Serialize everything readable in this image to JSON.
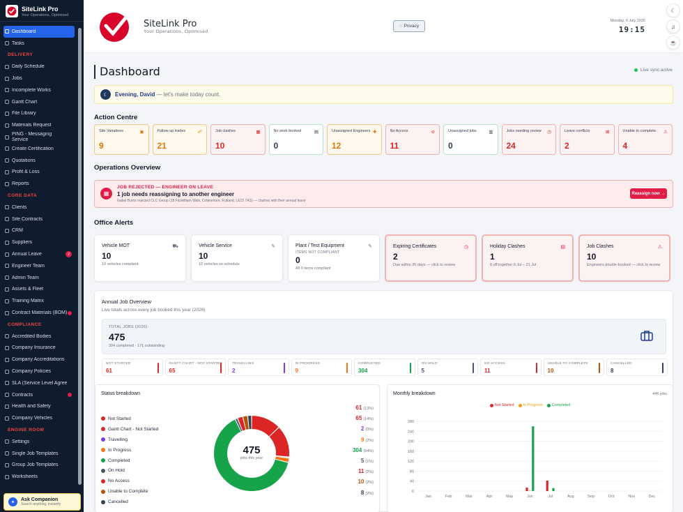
{
  "brand": {
    "title": "SiteLink Pro",
    "subtitle": "Your Operations, Optimised"
  },
  "nav": {
    "top": [
      {
        "label": "Dashboard",
        "active": true
      },
      {
        "label": "Tasks"
      }
    ],
    "sections": [
      {
        "title": "DELIVERY",
        "items": [
          {
            "label": "Daily Schedule"
          },
          {
            "label": "Jobs"
          },
          {
            "label": "Incomplete Works"
          },
          {
            "label": "Gantt Chart"
          },
          {
            "label": "File Library"
          },
          {
            "label": "Materials Request"
          },
          {
            "label": "PING - Messaging Service"
          },
          {
            "label": "Create Certification"
          },
          {
            "label": "Quotations"
          },
          {
            "label": "Profit & Loss"
          },
          {
            "label": "Reports"
          }
        ]
      },
      {
        "title": "CORE DATA",
        "items": [
          {
            "label": "Clients"
          },
          {
            "label": "Site Contracts"
          },
          {
            "label": "CRM"
          },
          {
            "label": "Suppliers"
          },
          {
            "label": "Annual Leave",
            "badge": "2"
          },
          {
            "label": "Engineer Team"
          },
          {
            "label": "Admin Team"
          },
          {
            "label": "Assets & Fleet"
          },
          {
            "label": "Training Matrix"
          },
          {
            "label": "Contract Materials (BOM)",
            "dot": true
          }
        ]
      },
      {
        "title": "COMPLIANCE",
        "items": [
          {
            "label": "Accredited Bodies"
          },
          {
            "label": "Company Insurance"
          },
          {
            "label": "Company Accreditations"
          },
          {
            "label": "Company Policies"
          },
          {
            "label": "SLA (Service Level Agree..."
          },
          {
            "label": "Contracts",
            "dot": true
          },
          {
            "label": "Health and Safety"
          },
          {
            "label": "Company Vehicles"
          }
        ]
      },
      {
        "title": "ENGINE ROOM",
        "items": [
          {
            "label": "Settings"
          },
          {
            "label": "Single Job Templates"
          },
          {
            "label": "Group Job Templates"
          },
          {
            "label": "Worksheets"
          }
        ]
      }
    ]
  },
  "companion": {
    "title": "Ask Companion",
    "subtitle": "Search anything, instantly"
  },
  "header": {
    "title": "SiteLink Pro",
    "subtitle": "Your Operations, Optimised",
    "privacy_label": "Privacy",
    "date": "Monday, 6 July 2026",
    "time": "19:15"
  },
  "page": {
    "title": "Dashboard",
    "sync": "Live sync active"
  },
  "greeting": {
    "name": "Evening, David",
    "text": " — let's make today count."
  },
  "action_centre": {
    "title": "Action Centre",
    "cards": [
      {
        "label": "Site Variations",
        "value": "9",
        "tone": "amber",
        "color": "#d97706",
        "icon": "▣"
      },
      {
        "label": "Follow-up trades",
        "value": "21",
        "tone": "amber",
        "color": "#d97706",
        "icon": "☍"
      },
      {
        "label": "Job clashes",
        "value": "10",
        "tone": "red",
        "color": "#dc2626",
        "icon": "▦"
      },
      {
        "label": "No work booked",
        "value": "0",
        "tone": "green",
        "color": "#334155",
        "icon": "▤"
      },
      {
        "label": "Unassigned Engineers",
        "value": "12",
        "tone": "amber",
        "color": "#d97706",
        "icon": "✚"
      },
      {
        "label": "No Access",
        "value": "11",
        "tone": "red",
        "color": "#dc2626",
        "icon": "⊘"
      },
      {
        "label": "Unassigned jobs",
        "value": "0",
        "tone": "green",
        "color": "#334155",
        "icon": "▥"
      },
      {
        "label": "Jobs needing review",
        "value": "24",
        "tone": "red",
        "color": "#dc2626",
        "icon": "◷"
      },
      {
        "label": "Leave conflicts",
        "value": "2",
        "tone": "red",
        "color": "#dc2626",
        "icon": "⊠"
      },
      {
        "label": "Unable to complete",
        "value": "4",
        "tone": "red",
        "color": "#dc2626",
        "icon": "⚠"
      }
    ]
  },
  "operations": {
    "title": "Operations Overview",
    "tag": "JOB REJECTED — ENGINEER ON LEAVE",
    "headline": "1 job needs reassigning to another engineer",
    "detail": "Isabel Burns rejected CLC Group (18 Fitzwilliam Walk, Cottesmore, Rutland, LE15 7AS) — clashes with their annual leave",
    "button": "Reassign now →"
  },
  "office_alerts": {
    "title": "Office Alerts",
    "cards": [
      {
        "title": "Vehicle MOT",
        "value": "10",
        "sub": "10 vehicles compliant",
        "alert": false,
        "icon": "⛟"
      },
      {
        "title": "Vehicle Service",
        "value": "10",
        "sub": "10 vehicles on schedule",
        "alert": false,
        "icon": "✎"
      },
      {
        "title": "Plant / Test Equipment",
        "mini": "ITEMS NOT COMPLIANT",
        "value": "0",
        "sub": "All 0 items compliant",
        "alert": false,
        "icon": "✎"
      },
      {
        "title": "Expiring Certificates",
        "value": "2",
        "sub": "Due within 30 days — click to review",
        "alert": true,
        "icon": "◷"
      },
      {
        "title": "Holiday Clashes",
        "value": "1",
        "sub": "8 off together 6 Jul – 21 Jul",
        "alert": true,
        "icon": "▤"
      },
      {
        "title": "Job Clashes",
        "value": "10",
        "sub": "Engineers double-booked — click to review",
        "alert": true,
        "icon": "⚠"
      }
    ]
  },
  "annual": {
    "title": "Annual Job Overview",
    "subtitle": "Live totals across every job booked this year (2026)",
    "total_label": "TOTAL JOBS (2026)",
    "total_value": "475",
    "total_sub": "304 completed · 171 outstanding",
    "statuses": [
      {
        "label": "NOT STARTED",
        "value": "61",
        "color": "#dc2626"
      },
      {
        "label": "GANTT CHART - NOT STARTED",
        "value": "65",
        "color": "#dc2626"
      },
      {
        "label": "TRAVELLING",
        "value": "2",
        "color": "#7c3aed"
      },
      {
        "label": "IN PROGRESS",
        "value": "9",
        "color": "#f97316"
      },
      {
        "label": "COMPLETED",
        "value": "304",
        "color": "#16a34a"
      },
      {
        "label": "ON HOLD",
        "value": "5",
        "color": "#475569"
      },
      {
        "label": "NO ACCESS",
        "value": "11",
        "color": "#dc2626"
      },
      {
        "label": "UNABLE TO COMPLETE",
        "value": "10",
        "color": "#b45309"
      },
      {
        "label": "CANCELLED",
        "value": "8",
        "color": "#334155"
      }
    ]
  },
  "status_breakdown": {
    "title": "Status breakdown",
    "center_value": "475",
    "center_label": "jobs this year",
    "items": [
      {
        "label": "Not Started",
        "value": "61",
        "pct": "(13%)",
        "n": 61,
        "color": "#dc2626"
      },
      {
        "label": "Gantt Chart - Not Started",
        "value": "65",
        "pct": "(14%)",
        "n": 65,
        "color": "#dc2626"
      },
      {
        "label": "Travelling",
        "value": "2",
        "pct": "(0%)",
        "n": 2,
        "color": "#7c3aed"
      },
      {
        "label": "In Progress",
        "value": "9",
        "pct": "(2%)",
        "n": 9,
        "color": "#f97316"
      },
      {
        "label": "Completed",
        "value": "304",
        "pct": "(64%)",
        "n": 304,
        "color": "#16a34a"
      },
      {
        "label": "On Hold",
        "value": "5",
        "pct": "(1%)",
        "n": 5,
        "color": "#475569"
      },
      {
        "label": "No Access",
        "value": "11",
        "pct": "(2%)",
        "n": 11,
        "color": "#dc2626"
      },
      {
        "label": "Unable to Complete",
        "value": "10",
        "pct": "(2%)",
        "n": 10,
        "color": "#b45309"
      },
      {
        "label": "Cancelled",
        "value": "8",
        "pct": "(2%)",
        "n": 8,
        "color": "#334155"
      }
    ]
  },
  "monthly": {
    "title": "Monthly breakdown",
    "count": "446 jobs"
  },
  "chart_data": {
    "type": "bar",
    "categories": [
      "Jan",
      "Feb",
      "Mar",
      "Apr",
      "May",
      "Jun",
      "Jul",
      "Aug",
      "Sep",
      "Oct",
      "Nov",
      "Dec"
    ],
    "series": [
      {
        "name": "Not Started",
        "color": "#dc2626",
        "values": [
          0,
          0,
          0,
          0,
          0,
          14,
          42,
          0,
          0,
          0,
          0,
          0
        ]
      },
      {
        "name": "In Progress",
        "color": "#f59e0b",
        "values": [
          0,
          0,
          0,
          0,
          0,
          2,
          0,
          0,
          0,
          0,
          0,
          0
        ]
      },
      {
        "name": "Completed",
        "color": "#16a34a",
        "values": [
          0,
          0,
          0,
          0,
          0,
          260,
          12,
          0,
          0,
          0,
          0,
          0
        ]
      }
    ],
    "ylim": [
      0,
      280
    ],
    "yticks": [
      0,
      40,
      80,
      120,
      160,
      200,
      240,
      280
    ],
    "legend": "top"
  }
}
